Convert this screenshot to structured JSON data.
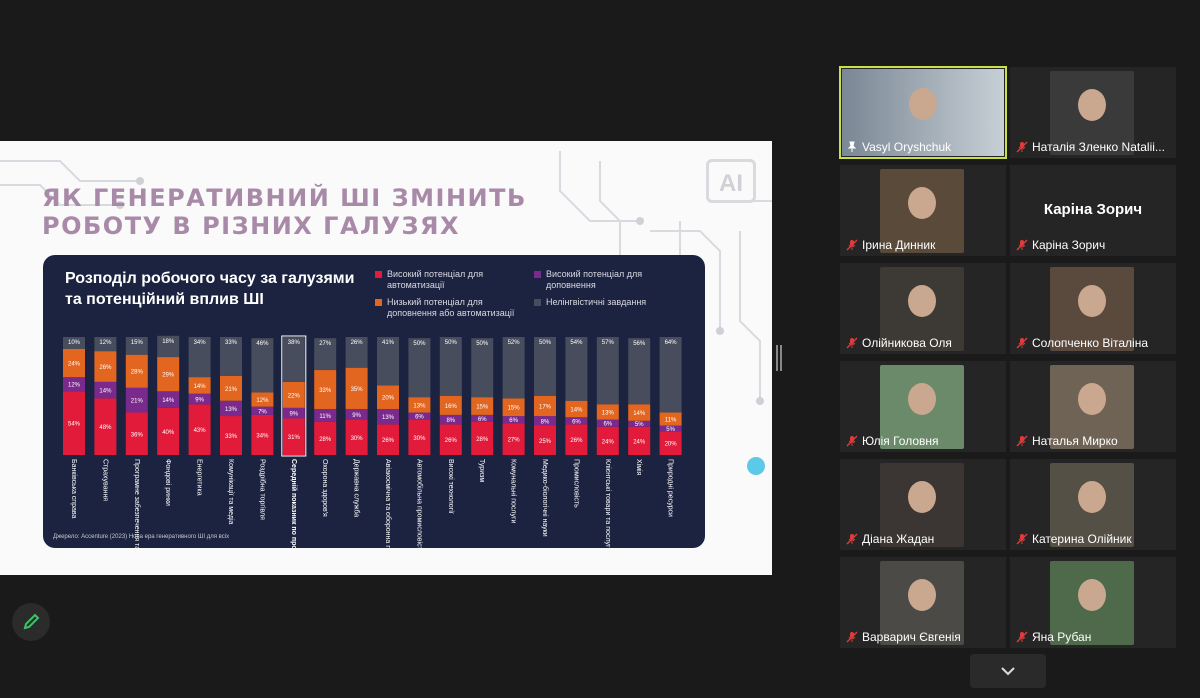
{
  "slide": {
    "title_line1": "ЯК ГЕНЕРАТИВНИЙ ШІ ЗМІНИТЬ",
    "title_line2": "РОБОТУ В РІЗНИХ ГАЛУЗЯХ",
    "badge": "AI",
    "card_title": "Розподіл робочого часу за галузями та потенційний вплив ШІ",
    "source": "Джерело: Accenture (2023) Нова ера генеративного ШІ для всіх"
  },
  "colors": {
    "high": "#e31b3b",
    "augment": "#7a2a8c",
    "low": "#e2661f",
    "nonlang": "#474d5c",
    "active_tile": "#c8e04a"
  },
  "chart_data": {
    "type": "bar",
    "stacked": true,
    "categories": [
      "Банківська справа",
      "Страхування",
      "Програмне забезпечення та платформи",
      "Фондові ринки",
      "Енергетика",
      "Комунікації та медіа",
      "Роздрібна торгівля",
      "Середній показник по промисловості",
      "Охорона здоров'я",
      "Державна служба",
      "Авіакосмічна та оборонна промисловість",
      "Автомобільна промисловість",
      "Високі технології",
      "Туризм",
      "Комунальні послуги",
      "Медико-біологічні науки",
      "Промисловість",
      "Клієнтські товари та послуги",
      "Хімія",
      "Природні ресурси"
    ],
    "series": [
      {
        "name": "Високий потенціал для автоматизації",
        "color": "#e31b3b",
        "values": [
          54,
          48,
          36,
          40,
          43,
          33,
          34,
          31,
          28,
          30,
          26,
          30,
          26,
          28,
          27,
          25,
          26,
          24,
          24,
          20
        ]
      },
      {
        "name": "Високий потенціал для доповнення",
        "color": "#7a2a8c",
        "values": [
          12,
          14,
          21,
          14,
          9,
          13,
          7,
          9,
          11,
          9,
          13,
          6,
          8,
          6,
          6,
          8,
          6,
          6,
          5,
          5
        ]
      },
      {
        "name": "Низький потенціал для доповнення або автоматизації",
        "color": "#e2661f",
        "values": [
          24,
          26,
          28,
          29,
          14,
          21,
          12,
          22,
          33,
          35,
          20,
          13,
          16,
          15,
          15,
          17,
          14,
          13,
          14,
          11
        ]
      },
      {
        "name": "Нелінгвістичні завдання",
        "color": "#474d5c",
        "values": [
          10,
          12,
          15,
          18,
          34,
          33,
          46,
          38,
          27,
          26,
          41,
          50,
          50,
          50,
          52,
          50,
          54,
          57,
          56,
          64
        ]
      }
    ],
    "ylim": [
      0,
      100
    ],
    "highlight_category": "Середній показник по промисловості"
  },
  "participants": [
    {
      "name": "Vasyl Oryshchuk",
      "status": "pinned",
      "icon": "pin-icon",
      "video": true,
      "active": true
    },
    {
      "name": "Наталія Зленко Natalii...",
      "status": "muted",
      "icon": "mic-muted-icon",
      "video": true
    },
    {
      "name": "Ірина  Динник",
      "status": "muted",
      "icon": "mic-muted-icon",
      "video": true
    },
    {
      "name": "Каріна Зорич",
      "status": "muted",
      "icon": "mic-muted-icon",
      "video": false,
      "display_name": "Каріна Зорич"
    },
    {
      "name": "Олійникова Оля",
      "status": "muted",
      "icon": "mic-muted-icon",
      "video": true
    },
    {
      "name": "Солопченко Віталіна",
      "status": "muted",
      "icon": "mic-muted-icon",
      "video": true
    },
    {
      "name": "Юлія Головня",
      "status": "muted",
      "icon": "mic-muted-icon",
      "video": true
    },
    {
      "name": "Наталья Мирко",
      "status": "muted",
      "icon": "mic-muted-icon",
      "video": true
    },
    {
      "name": "Діана Жадан",
      "status": "muted",
      "icon": "mic-muted-icon",
      "video": true
    },
    {
      "name": "Катерина Олійник",
      "status": "muted",
      "icon": "mic-muted-icon",
      "video": true
    },
    {
      "name": "Варварич Євгенія",
      "status": "muted",
      "icon": "mic-muted-icon",
      "video": true
    },
    {
      "name": "Яна Рубан",
      "status": "muted",
      "icon": "mic-muted-icon",
      "video": true
    }
  ],
  "controls": {
    "annotate_icon": "pencil-icon",
    "scroll_icon": "chevron-down-icon"
  }
}
